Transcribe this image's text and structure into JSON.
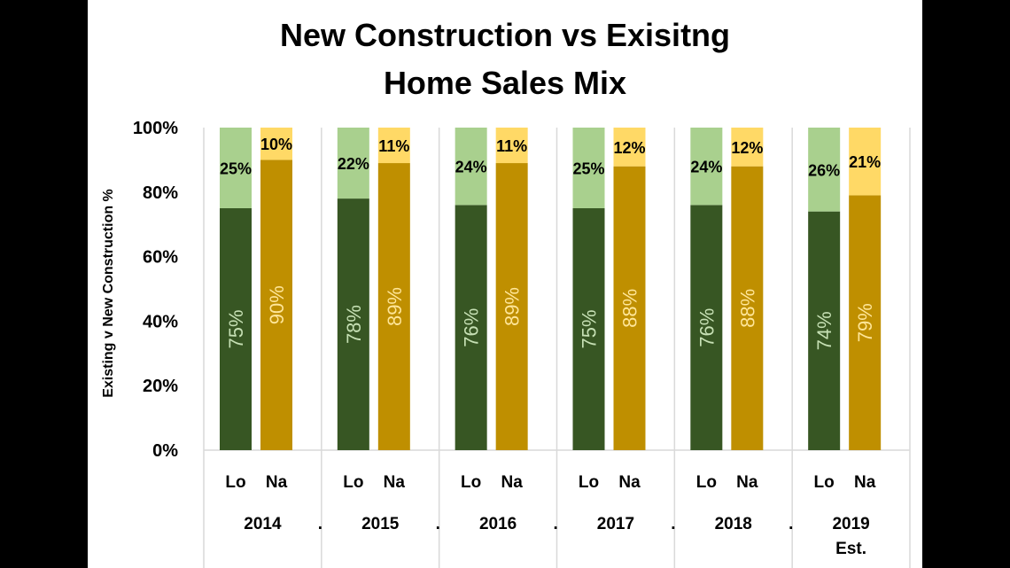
{
  "chart_data": {
    "type": "bar",
    "stacked": true,
    "title_lines": [
      "New Construction vs Exisitng",
      "Home Sales Mix"
    ],
    "ylabel": "Existing v New Construction %",
    "ylim": [
      0,
      100
    ],
    "yticks": [
      "0%",
      "20%",
      "40%",
      "60%",
      "80%",
      "100%"
    ],
    "groups": [
      {
        "label": "2014",
        "mark": ".",
        "bars": [
          {
            "label": "Lo",
            "bottom": 75,
            "top": 25,
            "bottom_label": "75%",
            "top_label": "25%"
          },
          {
            "label": "Na",
            "bottom": 90,
            "top": 10,
            "bottom_label": "90%",
            "top_label": "10%"
          }
        ]
      },
      {
        "label": "2015",
        "mark": ".",
        "bars": [
          {
            "label": "Lo",
            "bottom": 78,
            "top": 22,
            "bottom_label": "78%",
            "top_label": "22%"
          },
          {
            "label": "Na",
            "bottom": 89,
            "top": 11,
            "bottom_label": "89%",
            "top_label": "11%"
          }
        ]
      },
      {
        "label": "2016",
        "mark": ".",
        "bars": [
          {
            "label": "Lo",
            "bottom": 76,
            "top": 24,
            "bottom_label": "76%",
            "top_label": "24%"
          },
          {
            "label": "Na",
            "bottom": 89,
            "top": 11,
            "bottom_label": "89%",
            "top_label": "11%"
          }
        ]
      },
      {
        "label": "2017",
        "mark": ".",
        "bars": [
          {
            "label": "Lo",
            "bottom": 75,
            "top": 25,
            "bottom_label": "75%",
            "top_label": "25%"
          },
          {
            "label": "Na",
            "bottom": 88,
            "top": 12,
            "bottom_label": "88%",
            "top_label": "12%"
          }
        ]
      },
      {
        "label": "2018",
        "mark": ".",
        "bars": [
          {
            "label": "Lo",
            "bottom": 76,
            "top": 24,
            "bottom_label": "76%",
            "top_label": "24%"
          },
          {
            "label": "Na",
            "bottom": 88,
            "top": 12,
            "bottom_label": "88%",
            "top_label": "12%"
          }
        ]
      },
      {
        "label": "2019",
        "sublabel": "Est.",
        "bars": [
          {
            "label": "Lo",
            "bottom": 74,
            "top": 26,
            "bottom_label": "74%",
            "top_label": "26%"
          },
          {
            "label": "Na",
            "bottom": 79,
            "top": 21,
            "bottom_label": "79%",
            "top_label": "21%"
          }
        ]
      }
    ],
    "colors": {
      "lo_bottom": "#375623",
      "lo_top": "#a9d08e",
      "na_bottom": "#bf8f00",
      "na_top": "#ffd966",
      "lo_bottom_text": "#c6e0b4",
      "na_bottom_text": "#ffe699",
      "grid": "#d9d9d9"
    },
    "grid": true,
    "legend": "none"
  }
}
